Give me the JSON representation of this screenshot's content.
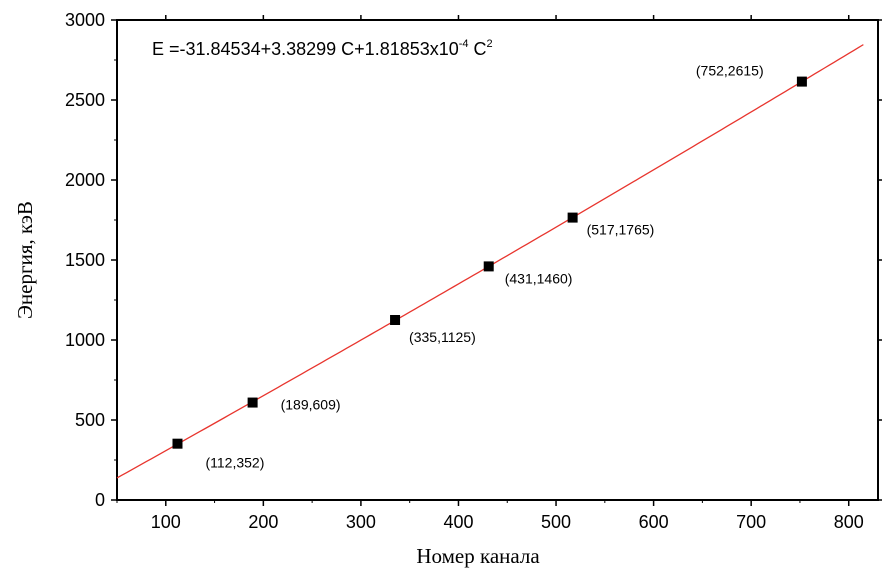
{
  "chart_data": {
    "type": "scatter",
    "title": "",
    "xlabel": "Номер канала",
    "ylabel": "Энергия, кэВ",
    "xlim": [
      50,
      830
    ],
    "ylim": [
      0,
      3000
    ],
    "x_ticks": [
      100,
      200,
      300,
      400,
      500,
      600,
      700,
      800
    ],
    "y_ticks": [
      0,
      500,
      1000,
      1500,
      2000,
      2500,
      3000
    ],
    "points": [
      {
        "x": 112,
        "y": 352,
        "label": "(112,352)"
      },
      {
        "x": 189,
        "y": 609,
        "label": "(189,609)"
      },
      {
        "x": 335,
        "y": 1125,
        "label": "(335,1125)"
      },
      {
        "x": 431,
        "y": 1460,
        "label": "(431,1460)"
      },
      {
        "x": 517,
        "y": 1765,
        "label": "(517,1765)"
      },
      {
        "x": 752,
        "y": 2615,
        "label": "(752,2615)"
      }
    ],
    "fit": {
      "a0": -31.84534,
      "a1": 3.38299,
      "a2": 0.000181853,
      "x_range": [
        50,
        815
      ],
      "color": "#e8352e",
      "equation": {
        "main": "E =-31.84534+3.38299 C+1.81853x10",
        "exp1": "-4",
        "mid": " C",
        "exp2": "2"
      }
    },
    "marker_color": "#000000",
    "grid": false
  }
}
